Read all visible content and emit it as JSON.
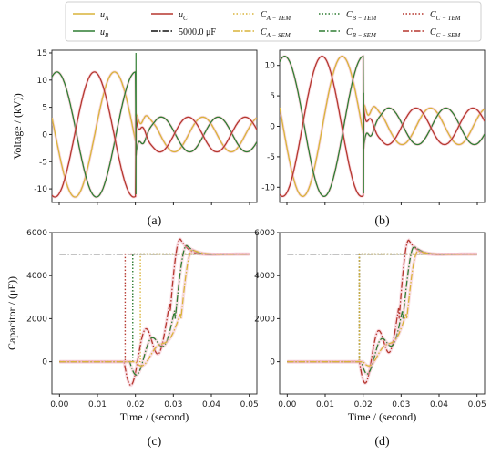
{
  "colors": {
    "A": "#d9b43a",
    "B": "#2e7d32",
    "C": "#b5372e",
    "ref": "#111111",
    "sem_glow": "#f2b6c4"
  },
  "legend": {
    "entries": [
      {
        "key": "uA",
        "label": "u",
        "sub": "A",
        "style": "solid",
        "color_key": "A"
      },
      {
        "key": "uC",
        "label": "u",
        "sub": "C",
        "style": "solid",
        "color_key": "C"
      },
      {
        "key": "CA_TEM",
        "label": "C",
        "sub": "A − TEM",
        "style": "dotted",
        "color_key": "A"
      },
      {
        "key": "CB_TEM",
        "label": "C",
        "sub": "B − TEM",
        "style": "dotted",
        "color_key": "B"
      },
      {
        "key": "CC_TEM",
        "label": "C",
        "sub": "C − TEM",
        "style": "dotted",
        "color_key": "C"
      },
      {
        "key": "uB",
        "label": "u",
        "sub": "B",
        "style": "solid",
        "color_key": "B"
      },
      {
        "key": "ref",
        "label": "5000.0 μF",
        "sub": "",
        "style": "dashdot",
        "color_key": "ref"
      },
      {
        "key": "CA_SEM",
        "label": "C",
        "sub": "A − SEM",
        "style": "dashdot",
        "color_key": "A"
      },
      {
        "key": "CB_SEM",
        "label": "C",
        "sub": "B − SEM",
        "style": "dashdot",
        "color_key": "B"
      },
      {
        "key": "CC_SEM",
        "label": "C",
        "sub": "C − SEM",
        "style": "dashdot",
        "color_key": "C"
      }
    ]
  },
  "chart_data": [
    {
      "id": "a",
      "panel_label": "(a)",
      "type": "line",
      "ylabel": "Voltage / (kV))",
      "xlabel": "",
      "ylim": [
        -12.5,
        15.5
      ],
      "yticks": [
        "15",
        "10",
        "5",
        "0",
        "-5",
        "-10"
      ],
      "ytick_values": [
        15,
        10,
        5,
        0,
        -5,
        -10
      ],
      "switch_time": 0.019,
      "amplitude_before_kV": 11.5,
      "amplitude_after_kV": 3.2,
      "spike_kV": 15
    },
    {
      "id": "b",
      "panel_label": "(b)",
      "type": "line",
      "ylabel": "",
      "xlabel": "",
      "ylim": [
        -12.5,
        12.5
      ],
      "yticks": [
        "10",
        "5",
        "0",
        "-5",
        "-10"
      ],
      "ytick_values": [
        10,
        5,
        0,
        -5,
        -10
      ],
      "switch_time": 0.019,
      "amplitude_before_kV": 11.5,
      "amplitude_after_kV": 3.0,
      "spike_kV": 5.5
    },
    {
      "id": "c",
      "panel_label": "(c)",
      "type": "line",
      "ylabel": "Capacitor / (μF))",
      "xlabel": "Time / (second)",
      "xlim": [
        -0.002,
        0.052
      ],
      "ylim": [
        -1500,
        6000
      ],
      "xticks": [
        "0.00",
        "0.01",
        "0.02",
        "0.03",
        "0.04",
        "0.05"
      ],
      "xtick_values": [
        0.0,
        0.01,
        0.02,
        0.03,
        0.04,
        0.05
      ],
      "yticks": [
        "6000",
        "4000",
        "2000",
        "0"
      ],
      "ytick_values": [
        6000,
        4000,
        2000,
        0
      ],
      "reference_uF": 5000,
      "series": [
        {
          "key": "CC_TEM",
          "step_time": 0.0173
        },
        {
          "key": "CB_TEM",
          "step_time": 0.0193
        },
        {
          "key": "CA_TEM",
          "step_time": 0.0213
        },
        {
          "key": "CC_SEM",
          "start": 0.017,
          "rise": 0.029,
          "peak_time": 0.0318,
          "peak": 5700,
          "min": -1200
        },
        {
          "key": "CB_SEM",
          "start": 0.0185,
          "rise": 0.0305,
          "peak_time": 0.0335,
          "peak": 5400,
          "min": -700
        },
        {
          "key": "CA_SEM",
          "start": 0.02,
          "rise": 0.032,
          "peak_time": 0.035,
          "peak": 5200,
          "min": -250
        }
      ]
    },
    {
      "id": "d",
      "panel_label": "(d)",
      "type": "line",
      "ylabel": "",
      "xlabel": "Time / (second)",
      "xlim": [
        -0.002,
        0.052
      ],
      "ylim": [
        -1500,
        6000
      ],
      "xticks": [
        "0.00",
        "0.01",
        "0.02",
        "0.03",
        "0.04",
        "0.05"
      ],
      "xtick_values": [
        0.0,
        0.01,
        0.02,
        0.03,
        0.04,
        0.05
      ],
      "yticks": [
        "6000",
        "4000",
        "2000",
        "0"
      ],
      "ytick_values": [
        6000,
        4000,
        2000,
        0
      ],
      "reference_uF": 5000,
      "series": [
        {
          "key": "CC_TEM",
          "step_time": 0.019
        },
        {
          "key": "CB_TEM",
          "step_time": 0.019
        },
        {
          "key": "CA_TEM",
          "step_time": 0.019
        },
        {
          "key": "CC_SEM",
          "start": 0.019,
          "rise": 0.0295,
          "peak_time": 0.032,
          "peak": 5650,
          "min": -1100
        },
        {
          "key": "CB_SEM",
          "start": 0.0195,
          "rise": 0.0305,
          "peak_time": 0.0335,
          "peak": 5350,
          "min": -650
        },
        {
          "key": "CA_SEM",
          "start": 0.02,
          "rise": 0.0315,
          "peak_time": 0.0345,
          "peak": 5150,
          "min": -250
        }
      ]
    }
  ]
}
